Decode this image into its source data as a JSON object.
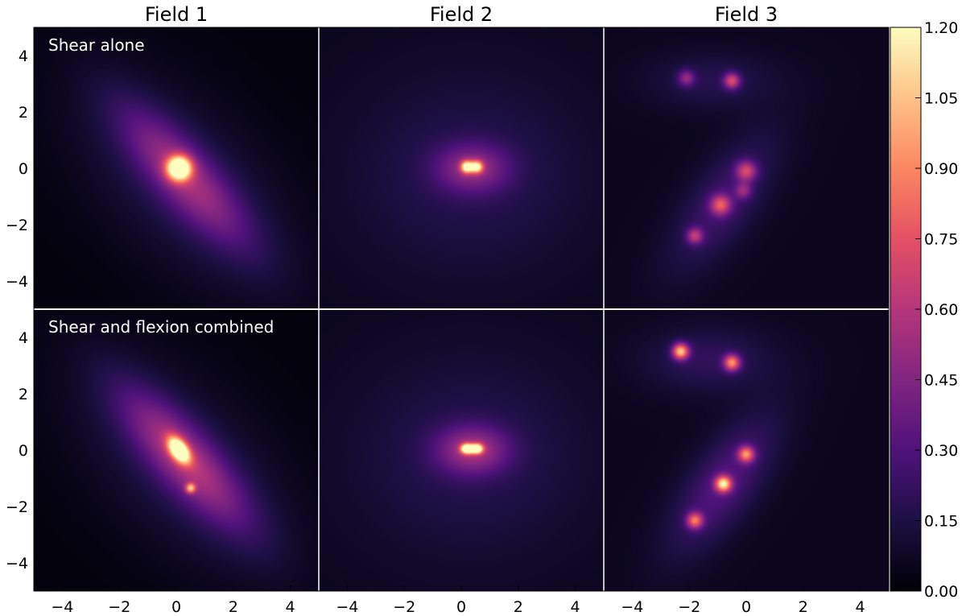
{
  "chart_data": {
    "type": "heatmap",
    "columns": [
      {
        "title": "Field 1"
      },
      {
        "title": "Field 2"
      },
      {
        "title": "Field 3"
      }
    ],
    "rows": [
      {
        "label": "Shear alone"
      },
      {
        "label": "Shear and flexion combined"
      }
    ],
    "xlim": [
      -5,
      5
    ],
    "ylim": [
      -5,
      5
    ],
    "x_ticks": [
      -4,
      -2,
      0,
      2,
      4
    ],
    "x_tick_labels": [
      "−4",
      "−2",
      "0",
      "2",
      "4"
    ],
    "y_ticks": [
      4,
      2,
      0,
      -2,
      -4
    ],
    "y_tick_labels": [
      "4",
      "2",
      "0",
      "−2",
      "−4"
    ],
    "colorbar": {
      "colormap": "magma",
      "vmin": 0.0,
      "vmax": 1.2,
      "ticks": [
        1.2,
        1.05,
        0.9,
        0.75,
        0.6,
        0.45,
        0.3,
        0.15,
        0.0
      ],
      "tick_labels": [
        "1.20",
        "1.05",
        "0.90",
        "0.75",
        "0.60",
        "0.45",
        "0.30",
        "0.15",
        "0.00"
      ],
      "colors": [
        "#000004",
        "#1c1044",
        "#4f127b",
        "#812581",
        "#b5367a",
        "#e55064",
        "#fb8761",
        "#fec287",
        "#fcfdbf"
      ]
    },
    "panels": [
      {
        "row": 0,
        "col": 0,
        "background": 0.02,
        "peaks": [
          {
            "x": 0.1,
            "y": 0.0,
            "value": 1.2,
            "sx": 0.3,
            "sy": 0.3,
            "theta": 0
          },
          {
            "x": 0.3,
            "y": -0.3,
            "value": 0.4,
            "sx": 2.2,
            "sy": 0.7,
            "theta": -48
          },
          {
            "x": 0.3,
            "y": -0.6,
            "value": 0.15,
            "sx": 3.5,
            "sy": 1.8,
            "theta": -45
          }
        ]
      },
      {
        "row": 0,
        "col": 1,
        "background": 0.06,
        "peaks": [
          {
            "x": 0.2,
            "y": 0.05,
            "value": 0.9,
            "sx": 0.15,
            "sy": 0.15,
            "theta": 0
          },
          {
            "x": 0.55,
            "y": 0.05,
            "value": 0.8,
            "sx": 0.15,
            "sy": 0.15,
            "theta": 0
          },
          {
            "x": 0.4,
            "y": 0.0,
            "value": 0.35,
            "sx": 0.9,
            "sy": 0.6,
            "theta": 0
          },
          {
            "x": 0.3,
            "y": -0.2,
            "value": 0.12,
            "sx": 3.0,
            "sy": 2.6,
            "theta": 0
          }
        ]
      },
      {
        "row": 0,
        "col": 2,
        "background": 0.06,
        "peaks": [
          {
            "x": -2.1,
            "y": 3.2,
            "value": 0.35,
            "sx": 0.2,
            "sy": 0.2,
            "theta": 0
          },
          {
            "x": -0.5,
            "y": 3.1,
            "value": 0.55,
            "sx": 0.2,
            "sy": 0.2,
            "theta": 0
          },
          {
            "x": 0.0,
            "y": -0.1,
            "value": 0.5,
            "sx": 0.25,
            "sy": 0.25,
            "theta": 0
          },
          {
            "x": -0.9,
            "y": -1.3,
            "value": 0.55,
            "sx": 0.25,
            "sy": 0.25,
            "theta": 0
          },
          {
            "x": -1.8,
            "y": -2.4,
            "value": 0.45,
            "sx": 0.2,
            "sy": 0.2,
            "theta": 0
          },
          {
            "x": -0.1,
            "y": -0.8,
            "value": 0.3,
            "sx": 0.2,
            "sy": 0.2,
            "theta": 0
          },
          {
            "x": -0.8,
            "y": -1.2,
            "value": 0.2,
            "sx": 2.0,
            "sy": 0.8,
            "theta": 55
          },
          {
            "x": -1.2,
            "y": 3.1,
            "value": 0.12,
            "sx": 1.6,
            "sy": 0.7,
            "theta": 0
          }
        ]
      },
      {
        "row": 1,
        "col": 0,
        "background": 0.02,
        "peaks": [
          {
            "x": 0.1,
            "y": 0.0,
            "value": 1.2,
            "sx": 0.35,
            "sy": 0.2,
            "theta": -55
          },
          {
            "x": 0.5,
            "y": -1.35,
            "value": 0.65,
            "sx": 0.12,
            "sy": 0.12,
            "theta": 0
          },
          {
            "x": 0.3,
            "y": -0.3,
            "value": 0.45,
            "sx": 2.2,
            "sy": 0.7,
            "theta": -48
          },
          {
            "x": 0.3,
            "y": -0.6,
            "value": 0.15,
            "sx": 3.5,
            "sy": 1.8,
            "theta": -45
          }
        ]
      },
      {
        "row": 1,
        "col": 1,
        "background": 0.06,
        "peaks": [
          {
            "x": 0.2,
            "y": 0.05,
            "value": 1.1,
            "sx": 0.15,
            "sy": 0.12,
            "theta": 0
          },
          {
            "x": 0.55,
            "y": 0.05,
            "value": 1.0,
            "sx": 0.15,
            "sy": 0.12,
            "theta": 0
          },
          {
            "x": 0.4,
            "y": 0.0,
            "value": 0.4,
            "sx": 0.9,
            "sy": 0.6,
            "theta": 0
          },
          {
            "x": 0.3,
            "y": -0.2,
            "value": 0.12,
            "sx": 3.0,
            "sy": 2.6,
            "theta": 0
          }
        ]
      },
      {
        "row": 1,
        "col": 2,
        "background": 0.06,
        "peaks": [
          {
            "x": -2.3,
            "y": 3.5,
            "value": 0.9,
            "sx": 0.2,
            "sy": 0.2,
            "theta": 0
          },
          {
            "x": -0.5,
            "y": 3.1,
            "value": 0.75,
            "sx": 0.2,
            "sy": 0.2,
            "theta": 0
          },
          {
            "x": 0.0,
            "y": -0.15,
            "value": 0.7,
            "sx": 0.2,
            "sy": 0.2,
            "theta": 0
          },
          {
            "x": -0.8,
            "y": -1.2,
            "value": 0.9,
            "sx": 0.2,
            "sy": 0.2,
            "theta": 0
          },
          {
            "x": -1.8,
            "y": -2.5,
            "value": 0.65,
            "sx": 0.2,
            "sy": 0.2,
            "theta": 0
          },
          {
            "x": -0.8,
            "y": -1.2,
            "value": 0.25,
            "sx": 2.0,
            "sy": 0.8,
            "theta": 55
          },
          {
            "x": -1.3,
            "y": 3.2,
            "value": 0.15,
            "sx": 1.6,
            "sy": 0.8,
            "theta": 0
          }
        ]
      }
    ]
  }
}
